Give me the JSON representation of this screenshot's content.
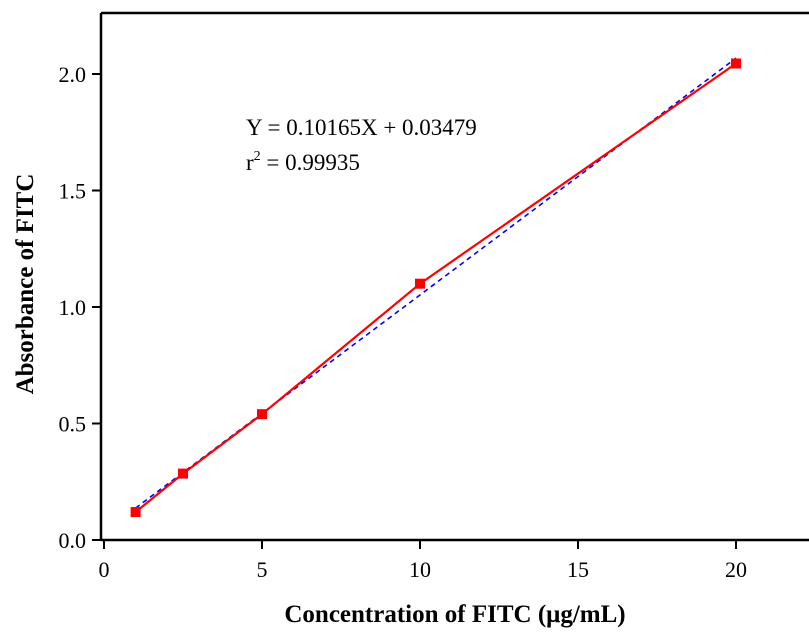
{
  "chart_data": {
    "type": "line",
    "xlabel": "Concentration of FITC (μg/mL)",
    "ylabel": "Absorbance of FITC",
    "xlim": [
      0,
      22
    ],
    "ylim": [
      0,
      2.3
    ],
    "x_ticks": [
      0,
      5,
      10,
      15,
      20
    ],
    "x_tick_labels": [
      "0",
      "5",
      "10",
      "15",
      "20"
    ],
    "y_ticks": [
      0.0,
      0.5,
      1.0,
      1.5,
      2.0
    ],
    "y_tick_labels": [
      "0.0",
      "0.5",
      "1.0",
      "1.5",
      "2.0"
    ],
    "grid": false,
    "legend": "none",
    "series": [
      {
        "style": "solid-line-square-markers",
        "color": "#ff0000",
        "x": [
          1,
          2.5,
          5,
          10,
          20
        ],
        "y": [
          0.12,
          0.285,
          0.54,
          1.1,
          2.045
        ]
      },
      {
        "style": "dashed-fit-line",
        "color": "#0000ff",
        "x": [
          1,
          20
        ],
        "y": [
          0.137,
          2.068
        ]
      }
    ],
    "annotations": {
      "equation": "Y = 0.10165X + 0.03479",
      "r2_prefix": "r",
      "r2_exponent": "2",
      "r2_value": " = 0.99935"
    }
  }
}
